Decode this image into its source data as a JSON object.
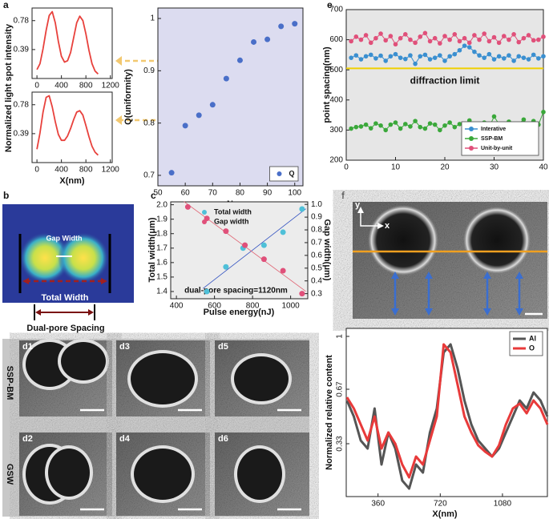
{
  "panels": {
    "a": "a",
    "b": "b",
    "c": "c",
    "e": "e",
    "f": "f"
  },
  "panel_b": {
    "gap_width": "Gap Width",
    "total_width": "Total Width",
    "spacing": "Dual-pore Spacing"
  },
  "panel_d": {
    "rows": [
      "SSP-BM",
      "GSW"
    ],
    "tiles": [
      "d1",
      "d3",
      "d5",
      "d2",
      "d4",
      "d6"
    ]
  },
  "panel_f_image": {
    "y": "y",
    "x": "x"
  },
  "chart_data": [
    {
      "type": "line",
      "ylabel": "Normalized  light spot intensity",
      "x": [
        0,
        50,
        100,
        150,
        200,
        250,
        300,
        350,
        400,
        450,
        500,
        550,
        600,
        650,
        700,
        750,
        800,
        850,
        900,
        950,
        1000
      ],
      "series": [
        {
          "color": "#e8413c",
          "values": [
            0.12,
            0.2,
            0.4,
            0.65,
            0.85,
            0.9,
            0.75,
            0.5,
            0.3,
            0.22,
            0.24,
            0.35,
            0.55,
            0.75,
            0.84,
            0.78,
            0.6,
            0.38,
            0.2,
            0.1,
            0.06
          ]
        }
      ],
      "xlim": [
        -80,
        1230
      ],
      "xticks": [
        0,
        400,
        800,
        1200
      ],
      "ylim": [
        0,
        0.95
      ],
      "yticks": [
        0.39,
        0.78
      ]
    },
    {
      "type": "line",
      "xlabel": "X(nm)",
      "x": [
        0,
        50,
        100,
        150,
        200,
        250,
        300,
        350,
        400,
        450,
        500,
        550,
        600,
        650,
        700,
        750,
        800,
        850,
        900,
        950,
        1000
      ],
      "series": [
        {
          "color": "#e8413c",
          "values": [
            0.18,
            0.4,
            0.68,
            0.88,
            0.9,
            0.75,
            0.55,
            0.38,
            0.3,
            0.3,
            0.36,
            0.46,
            0.58,
            0.68,
            0.7,
            0.64,
            0.5,
            0.35,
            0.22,
            0.14,
            0.1
          ]
        }
      ],
      "xlim": [
        -80,
        1230
      ],
      "xticks": [
        0,
        400,
        800,
        1200
      ],
      "ylim": [
        0,
        0.95
      ],
      "yticks": [
        0.39,
        0.78
      ]
    },
    {
      "type": "scatter",
      "xlabel": "N",
      "ylabel": "Q(uniformity)",
      "background": "#dcdcf0",
      "legend": "lower right",
      "x": [
        55,
        60,
        65,
        70,
        75,
        80,
        85,
        90,
        95,
        100
      ],
      "series": [
        {
          "name": "Q",
          "color": "#4a6fc8",
          "values": [
            0.705,
            0.795,
            0.815,
            0.835,
            0.885,
            0.92,
            0.955,
            0.96,
            0.985,
            0.99
          ]
        }
      ],
      "xlim": [
        50,
        103
      ],
      "xticks": [
        50,
        60,
        70,
        80,
        90,
        100
      ],
      "ylim": [
        0.68,
        1.02
      ],
      "yticks": [
        0.7,
        0.8,
        0.9,
        1
      ]
    },
    {
      "type": "scatter",
      "xlabel": "Pulse energy(nJ)",
      "ylabel": "Total width(μm)",
      "y2label": "Gap width(μm)",
      "background": "#ececec",
      "legend": "upper left",
      "fit": true,
      "annotation": "dual-pore spacing=1120nm",
      "series": [
        {
          "name": "Total width",
          "color": "#4fc0d8",
          "line_color": "#3050c0",
          "x": [
            560,
            660,
            750,
            860,
            960,
            1060
          ],
          "values": [
            1.4,
            1.57,
            1.7,
            1.72,
            1.81,
            1.97
          ]
        },
        {
          "name": "Gap   width",
          "color": "#e0507a",
          "line_color": "#e06070",
          "axis": "y2",
          "x": [
            460,
            560,
            660,
            760,
            860,
            960,
            1060
          ],
          "values": [
            0.98,
            0.89,
            0.79,
            0.68,
            0.57,
            0.48,
            0.3
          ]
        }
      ],
      "xlim": [
        370,
        1090
      ],
      "xticks": [
        400,
        600,
        800,
        1000
      ],
      "ylim": [
        1.35,
        2.02
      ],
      "yticks": [
        1.4,
        1.5,
        1.6,
        1.7,
        1.8,
        1.9,
        {
          "value": 2,
          "label": "2.0"
        }
      ],
      "y2lim": [
        0.26,
        1.02
      ],
      "y2ticks": [
        0.3,
        0.4,
        0.5,
        0.6,
        0.7,
        0.8,
        0.9,
        {
          "value": 1,
          "label": "1.0"
        }
      ]
    },
    {
      "type": "line",
      "ylabel": "point spacing(nm)",
      "background": "#e6e6e6",
      "markers": true,
      "legend": "lower right",
      "reference": {
        "value": 505,
        "label": "diffraction limit",
        "color": "#f0d000"
      },
      "x": [
        1,
        2,
        3,
        4,
        5,
        6,
        7,
        8,
        9,
        10,
        11,
        12,
        13,
        14,
        15,
        16,
        17,
        18,
        19,
        20,
        21,
        22,
        23,
        24,
        25,
        26,
        27,
        28,
        29,
        30,
        31,
        32,
        33,
        34,
        35,
        36,
        37,
        38,
        39,
        40
      ],
      "series": [
        {
          "name": "Interative",
          "color": "#3a8fd0",
          "values": [
            540,
            548,
            535,
            545,
            550,
            538,
            547,
            530,
            545,
            552,
            540,
            536,
            548,
            520,
            545,
            550,
            535,
            540,
            548,
            530,
            545,
            552,
            565,
            580,
            575,
            560,
            548,
            540,
            552,
            535,
            545,
            538,
            548,
            530,
            545,
            540,
            535,
            550,
            538,
            545
          ]
        },
        {
          "name": "SSP-BM",
          "color": "#3aa83a",
          "values": [
            305,
            310,
            312,
            318,
            306,
            322,
            315,
            300,
            318,
            325,
            305,
            320,
            312,
            330,
            310,
            305,
            322,
            318,
            300,
            315,
            325,
            310,
            320,
            315,
            332,
            308,
            318,
            325,
            310,
            345,
            320,
            315,
            328,
            305,
            320,
            335,
            310,
            330,
            318,
            360
          ]
        },
        {
          "name": "Unit-by-unit",
          "color": "#e0507a",
          "values": [
            595,
            610,
            600,
            615,
            590,
            605,
            620,
            598,
            612,
            585,
            605,
            618,
            600,
            590,
            610,
            622,
            595,
            605,
            588,
            612,
            600,
            618,
            595,
            605,
            590,
            615,
            600,
            620,
            595,
            608,
            590,
            612,
            600,
            618,
            592,
            605,
            615,
            598,
            600,
            610
          ]
        }
      ],
      "xlim": [
        0,
        40
      ],
      "xticks": [
        0,
        10,
        20,
        30,
        40
      ],
      "ylim": [
        200,
        700
      ],
      "yticks": [
        200,
        300,
        400,
        500,
        600,
        700
      ]
    },
    {
      "type": "line",
      "xlabel": "X(nm)",
      "ylabel": "Normalized relative content",
      "legend": "upper right",
      "line_width": 3,
      "x": [
        180,
        220,
        260,
        300,
        340,
        380,
        420,
        460,
        500,
        540,
        580,
        620,
        660,
        700,
        740,
        780,
        820,
        860,
        900,
        940,
        980,
        1020,
        1060,
        1100,
        1140,
        1180,
        1220,
        1260,
        1300,
        1340
      ],
      "series": [
        {
          "name": "Al",
          "color": "#555555",
          "values": [
            0.6,
            0.5,
            0.35,
            0.3,
            0.55,
            0.2,
            0.4,
            0.3,
            0.1,
            0.05,
            0.2,
            0.15,
            0.4,
            0.55,
            0.9,
            0.95,
            0.8,
            0.6,
            0.45,
            0.35,
            0.3,
            0.25,
            0.3,
            0.4,
            0.5,
            0.6,
            0.55,
            0.65,
            0.6,
            0.5
          ]
        },
        {
          "name": "O",
          "color": "#e83a3a",
          "values": [
            0.62,
            0.55,
            0.45,
            0.35,
            0.5,
            0.3,
            0.4,
            0.33,
            0.2,
            0.12,
            0.25,
            0.2,
            0.35,
            0.5,
            0.95,
            0.9,
            0.7,
            0.5,
            0.4,
            0.32,
            0.28,
            0.25,
            0.32,
            0.45,
            0.55,
            0.58,
            0.52,
            0.6,
            0.55,
            0.45
          ]
        }
      ],
      "xlim": [
        176,
        1340
      ],
      "xticks": [
        360,
        720,
        1080
      ],
      "ylim": [
        0,
        1.05
      ],
      "yticks": [
        0.33,
        0.67,
        1
      ]
    }
  ]
}
